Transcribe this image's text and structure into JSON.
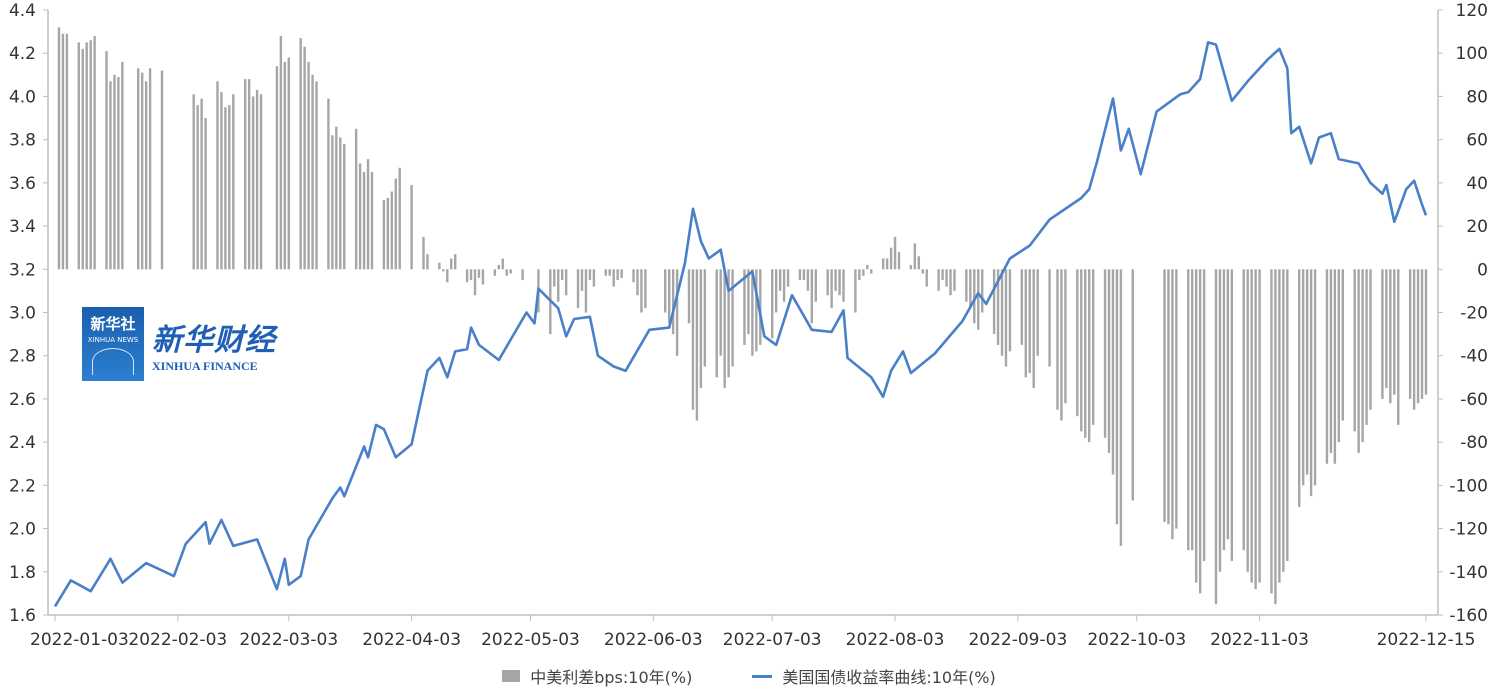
{
  "chart_data": {
    "type": "bar+line",
    "title": "",
    "x_range": [
      "2022-01-03",
      "2022-12-15"
    ],
    "x_tick_labels": [
      "2022-01-03",
      "2022-02-03",
      "2022-03-03",
      "2022-04-03",
      "2022-05-03",
      "2022-06-03",
      "2022-07-03",
      "2022-08-03",
      "2022-09-03",
      "2022-10-03",
      "2022-11-03",
      "2022-12-15"
    ],
    "y_left": {
      "range": [
        1.6,
        4.4
      ],
      "step": 0.2,
      "tick_labels": [
        "1.6",
        "1.8",
        "2.0",
        "2.2",
        "2.4",
        "2.6",
        "2.8",
        "3.0",
        "3.2",
        "3.4",
        "3.6",
        "3.8",
        "4.0",
        "4.2",
        "4.4"
      ]
    },
    "y_right": {
      "range": [
        -160,
        120
      ],
      "step": 20,
      "tick_labels": [
        "-160",
        "-140",
        "-120",
        "-100",
        "-80",
        "-60",
        "-40",
        "-20",
        "0",
        "20",
        "40",
        "60",
        "80",
        "100",
        "120"
      ]
    },
    "grid": false,
    "legend_placement": "bottom",
    "colors": {
      "bar": "#a6a6a6",
      "line": "#4a80c8"
    },
    "bar_series": {
      "name": "中美利差bps:10年(%)",
      "axis": "right",
      "weekday_runs": [
        {
          "start": "2022-01-04",
          "values": [
            112,
            109,
            109,
            105
          ]
        },
        {
          "start": "2022-01-10",
          "values": [
            102,
            105,
            106,
            108,
            101
          ]
        },
        {
          "start": "2022-01-17",
          "values": [
            87,
            90,
            89,
            96
          ]
        },
        {
          "start": "2022-01-24",
          "values": [
            93,
            91,
            87,
            93,
            92
          ]
        },
        {
          "start": "2022-02-07",
          "values": [
            81,
            76,
            79,
            70,
            87
          ]
        },
        {
          "start": "2022-02-14",
          "values": [
            82,
            75,
            76,
            81,
            88
          ]
        },
        {
          "start": "2022-02-21",
          "values": [
            88,
            80,
            83,
            81
          ]
        },
        {
          "start": "2022-02-28",
          "values": [
            94,
            108,
            96,
            98,
            107
          ]
        },
        {
          "start": "2022-03-07",
          "values": [
            103,
            96,
            90,
            87,
            79
          ]
        },
        {
          "start": "2022-03-14",
          "values": [
            62,
            66,
            61,
            58,
            65
          ]
        },
        {
          "start": "2022-03-21",
          "values": [
            49,
            45,
            51,
            45,
            32
          ]
        },
        {
          "start": "2022-03-28",
          "values": [
            33,
            36,
            42,
            47,
            39
          ]
        },
        {
          "start": "2022-04-06",
          "values": [
            15,
            7,
            3
          ]
        },
        {
          "start": "2022-04-11",
          "values": [
            -1,
            -6,
            5,
            7,
            -6
          ]
        },
        {
          "start": "2022-04-18",
          "values": [
            -5,
            -12,
            -4,
            -7,
            -3
          ]
        },
        {
          "start": "2022-04-25",
          "values": [
            2,
            5,
            -3,
            -2,
            -5
          ]
        },
        {
          "start": "2022-05-05",
          "values": [
            -20,
            -30
          ]
        },
        {
          "start": "2022-05-09",
          "values": [
            -8,
            -15,
            -5,
            -12,
            -18
          ]
        },
        {
          "start": "2022-05-16",
          "values": [
            -10,
            -20,
            -5,
            -8,
            -3
          ]
        },
        {
          "start": "2022-05-23",
          "values": [
            -3,
            -8,
            -5,
            -4,
            -6
          ]
        },
        {
          "start": "2022-05-30",
          "values": [
            -12,
            -20,
            -18
          ]
        },
        {
          "start": "2022-06-06",
          "values": [
            -20,
            -25,
            -30,
            -40,
            -25
          ]
        },
        {
          "start": "2022-06-13",
          "values": [
            -65,
            -70,
            -55,
            -45,
            -50
          ]
        },
        {
          "start": "2022-06-20",
          "values": [
            -40,
            -55,
            -50,
            -45,
            -35
          ]
        },
        {
          "start": "2022-06-27",
          "values": [
            -30,
            -40,
            -38,
            -35,
            -32
          ]
        },
        {
          "start": "2022-07-04",
          "values": [
            -20,
            -10,
            -15,
            -8,
            -5
          ]
        },
        {
          "start": "2022-07-11",
          "values": [
            -5,
            -10,
            -25,
            -15,
            -12
          ]
        },
        {
          "start": "2022-07-18",
          "values": [
            -18,
            -10,
            -12,
            -15,
            -20
          ]
        },
        {
          "start": "2022-07-25",
          "values": [
            -5,
            -3,
            2,
            -2,
            5
          ]
        },
        {
          "start": "2022-08-01",
          "values": [
            5,
            10,
            15,
            8,
            2
          ]
        },
        {
          "start": "2022-08-08",
          "values": [
            12,
            6,
            -2,
            -8,
            -10
          ]
        },
        {
          "start": "2022-08-15",
          "values": [
            -5,
            -8,
            -12,
            -10,
            -15
          ]
        },
        {
          "start": "2022-08-22",
          "values": [
            -18,
            -25,
            -28,
            -20,
            -30
          ]
        },
        {
          "start": "2022-08-29",
          "values": [
            -35,
            -40,
            -45,
            -38,
            -35
          ]
        },
        {
          "start": "2022-09-05",
          "values": [
            -50,
            -48,
            -55,
            -40,
            -45
          ]
        },
        {
          "start": "2022-09-13",
          "values": [
            -65,
            -70,
            -62,
            -68
          ]
        },
        {
          "start": "2022-09-19",
          "values": [
            -75,
            -78,
            -80,
            -72,
            -78
          ]
        },
        {
          "start": "2022-09-26",
          "values": [
            -85,
            -95,
            -118,
            -128,
            -107
          ]
        },
        {
          "start": "2022-10-10",
          "values": [
            -117,
            -118,
            -125,
            -120,
            -130
          ]
        },
        {
          "start": "2022-10-17",
          "values": [
            -130,
            -145,
            -150,
            -135,
            -155
          ]
        },
        {
          "start": "2022-10-24",
          "values": [
            -140,
            -130,
            -125,
            -135,
            -130
          ]
        },
        {
          "start": "2022-10-31",
          "values": [
            -140,
            -145,
            -148,
            -145,
            -150
          ]
        },
        {
          "start": "2022-11-07",
          "values": [
            -155,
            -145,
            -140,
            -135,
            -110
          ]
        },
        {
          "start": "2022-11-14",
          "values": [
            -100,
            -95,
            -105,
            -100,
            -90
          ]
        },
        {
          "start": "2022-11-21",
          "values": [
            -85,
            -90,
            -80,
            -70,
            -75
          ]
        },
        {
          "start": "2022-11-28",
          "values": [
            -85,
            -80,
            -72,
            -65,
            -60
          ]
        },
        {
          "start": "2022-12-05",
          "values": [
            -55,
            -62,
            -58,
            -72,
            -60
          ]
        },
        {
          "start": "2022-12-12",
          "values": [
            -65,
            -62,
            -60,
            -58
          ]
        }
      ]
    },
    "line_series": {
      "name": "美国国债收益率曲线:10年(%)",
      "axis": "left",
      "points": [
        [
          "2022-01-03",
          1.64
        ],
        [
          "2022-01-07",
          1.76
        ],
        [
          "2022-01-12",
          1.71
        ],
        [
          "2022-01-17",
          1.86
        ],
        [
          "2022-01-20",
          1.75
        ],
        [
          "2022-01-26",
          1.84
        ],
        [
          "2022-02-02",
          1.78
        ],
        [
          "2022-02-05",
          1.93
        ],
        [
          "2022-02-10",
          2.03
        ],
        [
          "2022-02-11",
          1.93
        ],
        [
          "2022-02-14",
          2.04
        ],
        [
          "2022-02-17",
          1.92
        ],
        [
          "2022-02-23",
          1.95
        ],
        [
          "2022-02-28",
          1.72
        ],
        [
          "2022-03-02",
          1.86
        ],
        [
          "2022-03-03",
          1.74
        ],
        [
          "2022-03-06",
          1.78
        ],
        [
          "2022-03-08",
          1.95
        ],
        [
          "2022-03-14",
          2.14
        ],
        [
          "2022-03-16",
          2.19
        ],
        [
          "2022-03-17",
          2.15
        ],
        [
          "2022-03-22",
          2.38
        ],
        [
          "2022-03-23",
          2.33
        ],
        [
          "2022-03-25",
          2.48
        ],
        [
          "2022-03-27",
          2.46
        ],
        [
          "2022-03-30",
          2.33
        ],
        [
          "2022-04-03",
          2.39
        ],
        [
          "2022-04-05",
          2.56
        ],
        [
          "2022-04-07",
          2.73
        ],
        [
          "2022-04-10",
          2.79
        ],
        [
          "2022-04-12",
          2.7
        ],
        [
          "2022-04-14",
          2.82
        ],
        [
          "2022-04-17",
          2.83
        ],
        [
          "2022-04-18",
          2.93
        ],
        [
          "2022-04-20",
          2.85
        ],
        [
          "2022-04-25",
          2.78
        ],
        [
          "2022-05-02",
          3.0
        ],
        [
          "2022-05-04",
          2.95
        ],
        [
          "2022-05-05",
          3.11
        ],
        [
          "2022-05-10",
          3.02
        ],
        [
          "2022-05-12",
          2.89
        ],
        [
          "2022-05-14",
          2.97
        ],
        [
          "2022-05-18",
          2.98
        ],
        [
          "2022-05-20",
          2.8
        ],
        [
          "2022-05-24",
          2.75
        ],
        [
          "2022-05-27",
          2.73
        ],
        [
          "2022-06-02",
          2.92
        ],
        [
          "2022-06-07",
          2.93
        ],
        [
          "2022-06-11",
          3.23
        ],
        [
          "2022-06-13",
          3.48
        ],
        [
          "2022-06-15",
          3.33
        ],
        [
          "2022-06-17",
          3.25
        ],
        [
          "2022-06-20",
          3.29
        ],
        [
          "2022-06-22",
          3.1
        ],
        [
          "2022-06-28",
          3.19
        ],
        [
          "2022-07-01",
          2.89
        ],
        [
          "2022-07-04",
          2.85
        ],
        [
          "2022-07-08",
          3.08
        ],
        [
          "2022-07-13",
          2.92
        ],
        [
          "2022-07-18",
          2.91
        ],
        [
          "2022-07-21",
          3.01
        ],
        [
          "2022-07-22",
          2.79
        ],
        [
          "2022-07-28",
          2.7
        ],
        [
          "2022-07-31",
          2.61
        ],
        [
          "2022-08-02",
          2.73
        ],
        [
          "2022-08-05",
          2.82
        ],
        [
          "2022-08-07",
          2.72
        ],
        [
          "2022-08-13",
          2.81
        ],
        [
          "2022-08-20",
          2.96
        ],
        [
          "2022-08-24",
          3.09
        ],
        [
          "2022-08-26",
          3.04
        ],
        [
          "2022-09-01",
          3.25
        ],
        [
          "2022-09-06",
          3.31
        ],
        [
          "2022-09-11",
          3.43
        ],
        [
          "2022-09-19",
          3.53
        ],
        [
          "2022-09-21",
          3.57
        ],
        [
          "2022-09-23",
          3.7
        ],
        [
          "2022-09-27",
          3.99
        ],
        [
          "2022-09-29",
          3.75
        ],
        [
          "2022-10-01",
          3.85
        ],
        [
          "2022-10-04",
          3.64
        ],
        [
          "2022-10-08",
          3.93
        ],
        [
          "2022-10-14",
          4.01
        ],
        [
          "2022-10-16",
          4.02
        ],
        [
          "2022-10-19",
          4.08
        ],
        [
          "2022-10-21",
          4.25
        ],
        [
          "2022-10-23",
          4.24
        ],
        [
          "2022-10-25",
          4.11
        ],
        [
          "2022-10-27",
          3.98
        ],
        [
          "2022-10-31",
          4.07
        ],
        [
          "2022-11-05",
          4.17
        ],
        [
          "2022-11-08",
          4.22
        ],
        [
          "2022-11-10",
          4.13
        ],
        [
          "2022-11-11",
          3.83
        ],
        [
          "2022-11-13",
          3.86
        ],
        [
          "2022-11-16",
          3.69
        ],
        [
          "2022-11-18",
          3.81
        ],
        [
          "2022-11-21",
          3.83
        ],
        [
          "2022-11-23",
          3.71
        ],
        [
          "2022-11-28",
          3.69
        ],
        [
          "2022-12-01",
          3.6
        ],
        [
          "2022-12-04",
          3.55
        ],
        [
          "2022-12-05",
          3.59
        ],
        [
          "2022-12-07",
          3.42
        ],
        [
          "2022-12-10",
          3.57
        ],
        [
          "2022-12-12",
          3.61
        ],
        [
          "2022-12-14",
          3.5
        ],
        [
          "2022-12-15",
          3.45
        ]
      ]
    }
  },
  "legend": {
    "bar_label": "中美利差bps:10年(%)",
    "line_label": "美国国债收益率曲线:10年(%)"
  },
  "watermark": {
    "badge_cn": "新华社",
    "badge_en": "XINHUA NEWS",
    "brand_cn": "新华财经",
    "brand_en": "XINHUA FINANCE"
  }
}
